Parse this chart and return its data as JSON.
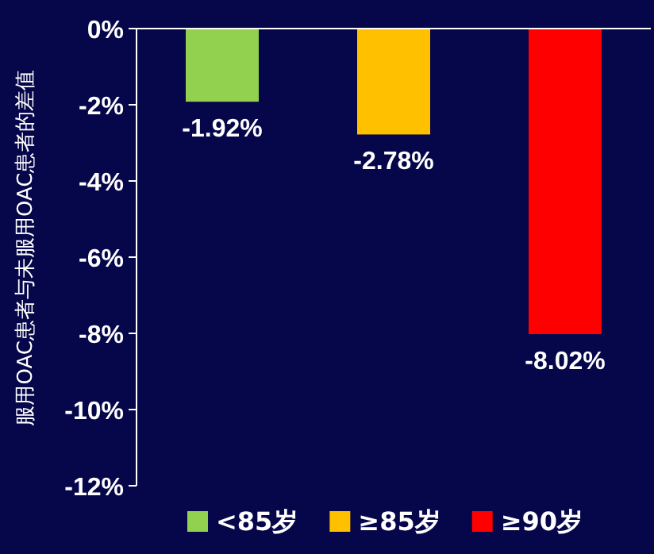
{
  "chart_data": {
    "type": "bar",
    "ylabel": "服用OAC患者与未服用OAC患者的差值",
    "categories": [
      null,
      null,
      null
    ],
    "series": [
      {
        "name": "<85岁",
        "color": "#92d050",
        "values": [
          -1.92,
          null,
          null
        ],
        "value_labels": [
          "-1.92%",
          null,
          null
        ]
      },
      {
        "name": "≥85岁",
        "color": "#ffc000",
        "values": [
          null,
          -2.78,
          null
        ],
        "value_labels": [
          null,
          "-2.78%",
          null
        ]
      },
      {
        "name": "≥90岁",
        "color": "#ff0000",
        "values": [
          null,
          null,
          -8.02
        ],
        "value_labels": [
          null,
          null,
          "-8.02%"
        ]
      }
    ],
    "ylim": [
      -12,
      0
    ],
    "yticks": [
      {
        "value": 0,
        "label": "0%"
      },
      {
        "value": -2,
        "label": "-2%"
      },
      {
        "value": -4,
        "label": "-4%"
      },
      {
        "value": -6,
        "label": "-6%"
      },
      {
        "value": -8,
        "label": "-8%"
      },
      {
        "value": -10,
        "label": "-10%"
      },
      {
        "value": -12,
        "label": "-12%"
      }
    ],
    "tick_labels": "y",
    "legend": "bottom"
  }
}
